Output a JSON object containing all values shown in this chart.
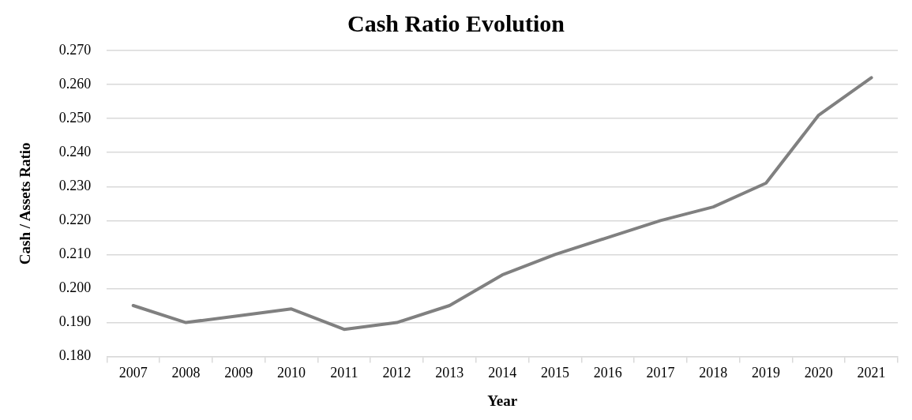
{
  "chart_data": {
    "type": "line",
    "title": "Cash Ratio Evolution",
    "xlabel": "Year",
    "ylabel": "Cash / Assets Ratio",
    "categories": [
      "2007",
      "2008",
      "2009",
      "2010",
      "2011",
      "2012",
      "2013",
      "2014",
      "2015",
      "2016",
      "2017",
      "2018",
      "2019",
      "2020",
      "2021"
    ],
    "series": [
      {
        "color": "#808080",
        "values": [
          0.195,
          0.19,
          0.192,
          0.194,
          0.188,
          0.19,
          0.195,
          0.204,
          0.21,
          0.215,
          0.22,
          0.224,
          0.231,
          0.251,
          0.262
        ]
      }
    ],
    "ylim": [
      0.18,
      0.27
    ],
    "yticks": [
      {
        "value": 0.18,
        "label": "0.180"
      },
      {
        "value": 0.19,
        "label": "0.190"
      },
      {
        "value": 0.2,
        "label": "0.200"
      },
      {
        "value": 0.21,
        "label": "0.210"
      },
      {
        "value": 0.22,
        "label": "0.220"
      },
      {
        "value": 0.23,
        "label": "0.230"
      },
      {
        "value": 0.24,
        "label": "0.240"
      },
      {
        "value": 0.25,
        "label": "0.250"
      },
      {
        "value": 0.26,
        "label": "0.260"
      },
      {
        "value": 0.27,
        "label": "0.270"
      }
    ],
    "grid": "y",
    "legend": false,
    "marker": "none",
    "line_style": "solid"
  }
}
